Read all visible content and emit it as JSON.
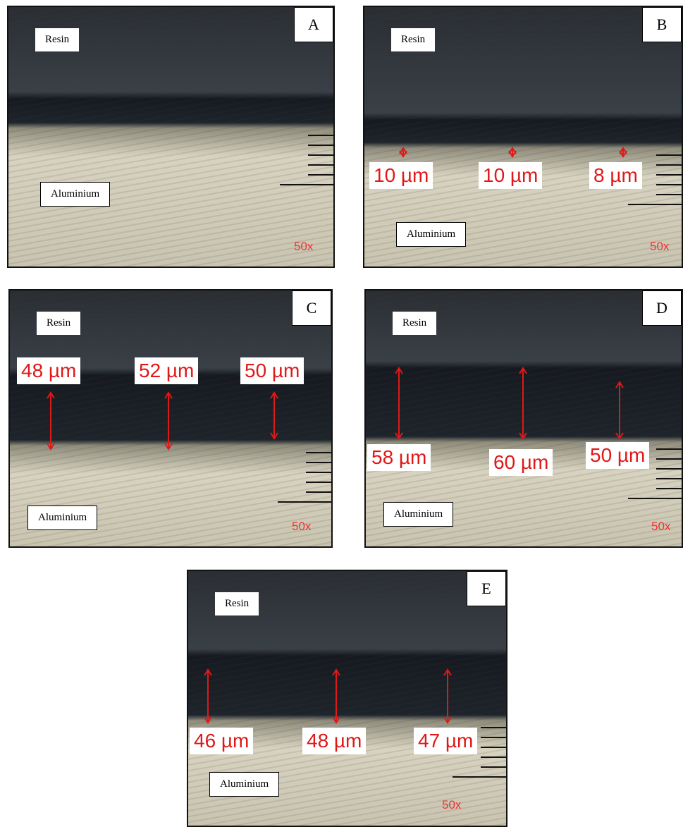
{
  "panels": [
    {
      "letter": "A",
      "resin": "Resin",
      "aluminium": "Aluminium",
      "magnification": "50x",
      "measurements": []
    },
    {
      "letter": "B",
      "resin": "Resin",
      "aluminium": "Aluminium",
      "magnification": "50x",
      "measurements": [
        "10 µm",
        "10 µm",
        "8 µm"
      ]
    },
    {
      "letter": "C",
      "resin": "Resin",
      "aluminium": "Aluminium",
      "magnification": "50x",
      "measurements": [
        "48 µm",
        "52 µm",
        "50 µm"
      ]
    },
    {
      "letter": "D",
      "resin": "Resin",
      "aluminium": "Aluminium",
      "magnification": "50x",
      "measurements": [
        "58 µm",
        "60 µm",
        "50 µm"
      ]
    },
    {
      "letter": "E",
      "resin": "Resin",
      "aluminium": "Aluminium",
      "magnification": "50x",
      "measurements": [
        "46 µm",
        "48 µm",
        "47 µm"
      ]
    }
  ]
}
